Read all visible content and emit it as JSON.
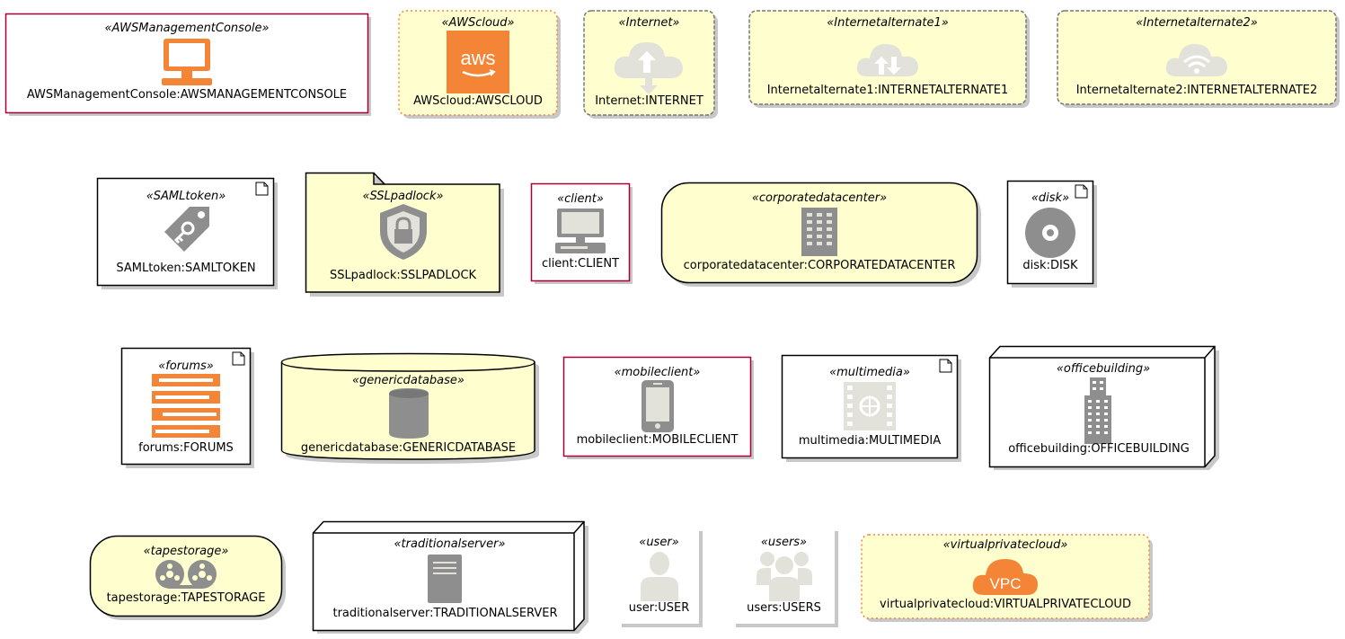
{
  "diagram": {
    "nodes": [
      {
        "id": "awsmgmt",
        "stereotype": "«AWSManagementConsole»",
        "label": "AWSManagementConsole:AWSMANAGEMENTCONSOLE",
        "shape": "rectangle",
        "icon": "monitor-icon"
      },
      {
        "id": "awscloud",
        "stereotype": "«AWScloud»",
        "label": "AWScloud:AWSCLOUD",
        "shape": "cloud",
        "icon": "aws-logo-icon"
      },
      {
        "id": "internet",
        "stereotype": "«Internet»",
        "label": "Internet:INTERNET",
        "shape": "cloud",
        "icon": "internet-cloud-icon"
      },
      {
        "id": "internetalt1",
        "stereotype": "«Internetalternate1»",
        "label": "Internetalternate1:INTERNETALTERNATE1",
        "shape": "cloud",
        "icon": "cloud-arrows-icon"
      },
      {
        "id": "internetalt2",
        "stereotype": "«Internetalternate2»",
        "label": "Internetalternate2:INTERNETALTERNATE2",
        "shape": "cloud",
        "icon": "cloud-wifi-icon"
      },
      {
        "id": "samltoken",
        "stereotype": "«SAMLtoken»",
        "label": "SAMLtoken:SAMLTOKEN",
        "shape": "artifact",
        "icon": "key-tag-icon"
      },
      {
        "id": "sslpadlock",
        "stereotype": "«SSLpadlock»",
        "label": "SSLpadlock:SSLPADLOCK",
        "shape": "folder",
        "icon": "shield-lock-icon"
      },
      {
        "id": "client",
        "stereotype": "«client»",
        "label": "client:CLIENT",
        "shape": "rectangle",
        "icon": "desktop-computer-icon"
      },
      {
        "id": "corpdc",
        "stereotype": "«corporatedatacenter»",
        "label": "corporatedatacenter:CORPORATEDATACENTER",
        "shape": "rounded",
        "icon": "datacenter-icon"
      },
      {
        "id": "disk",
        "stereotype": "«disk»",
        "label": "disk:DISK",
        "shape": "artifact",
        "icon": "disk-icon"
      },
      {
        "id": "forums",
        "stereotype": "«forums»",
        "label": "forums:FORUMS",
        "shape": "artifact",
        "icon": "forums-icon"
      },
      {
        "id": "genericdb",
        "stereotype": "«genericdatabase»",
        "label": "genericdatabase:GENERICDATABASE",
        "shape": "database",
        "icon": "database-icon"
      },
      {
        "id": "mobileclient",
        "stereotype": "«mobileclient»",
        "label": "mobileclient:MOBILECLIENT",
        "shape": "rectangle",
        "icon": "mobile-phone-icon"
      },
      {
        "id": "multimedia",
        "stereotype": "«multimedia»",
        "label": "multimedia:MULTIMEDIA",
        "shape": "artifact",
        "icon": "film-icon"
      },
      {
        "id": "officebuilding",
        "stereotype": "«officebuilding»",
        "label": "officebuilding:OFFICEBUILDING",
        "shape": "node3d",
        "icon": "office-building-icon"
      },
      {
        "id": "tapestorage",
        "stereotype": "«tapestorage»",
        "label": "tapestorage:TAPESTORAGE",
        "shape": "rounded",
        "icon": "tape-reels-icon"
      },
      {
        "id": "tradserver",
        "stereotype": "«traditionalserver»",
        "label": "traditionalserver:TRADITIONALSERVER",
        "shape": "node3d",
        "icon": "server-icon"
      },
      {
        "id": "user",
        "stereotype": "«user»",
        "label": "user:USER",
        "shape": "plain",
        "icon": "user-icon"
      },
      {
        "id": "users",
        "stereotype": "«users»",
        "label": "users:USERS",
        "shape": "plain",
        "icon": "users-icon"
      },
      {
        "id": "vpc",
        "stereotype": "«virtualprivatecloud»",
        "label": "virtualprivatecloud:VIRTUALPRIVATECLOUD",
        "shape": "cloud",
        "icon": "vpc-cloud-icon"
      }
    ],
    "icon_texts": {
      "aws": "aws",
      "vpc": "VPC"
    },
    "colors": {
      "fill_yellow": "#FEFECE",
      "border_dark": "#000000",
      "border_crimson": "#A80036",
      "border_orange": "#F58536",
      "border_gray": "#999999",
      "shadow": "#C8C8C8",
      "aws_orange": "#F58536",
      "icon_gray": "#8E8E8E",
      "icon_light": "#E2E2DA"
    }
  }
}
